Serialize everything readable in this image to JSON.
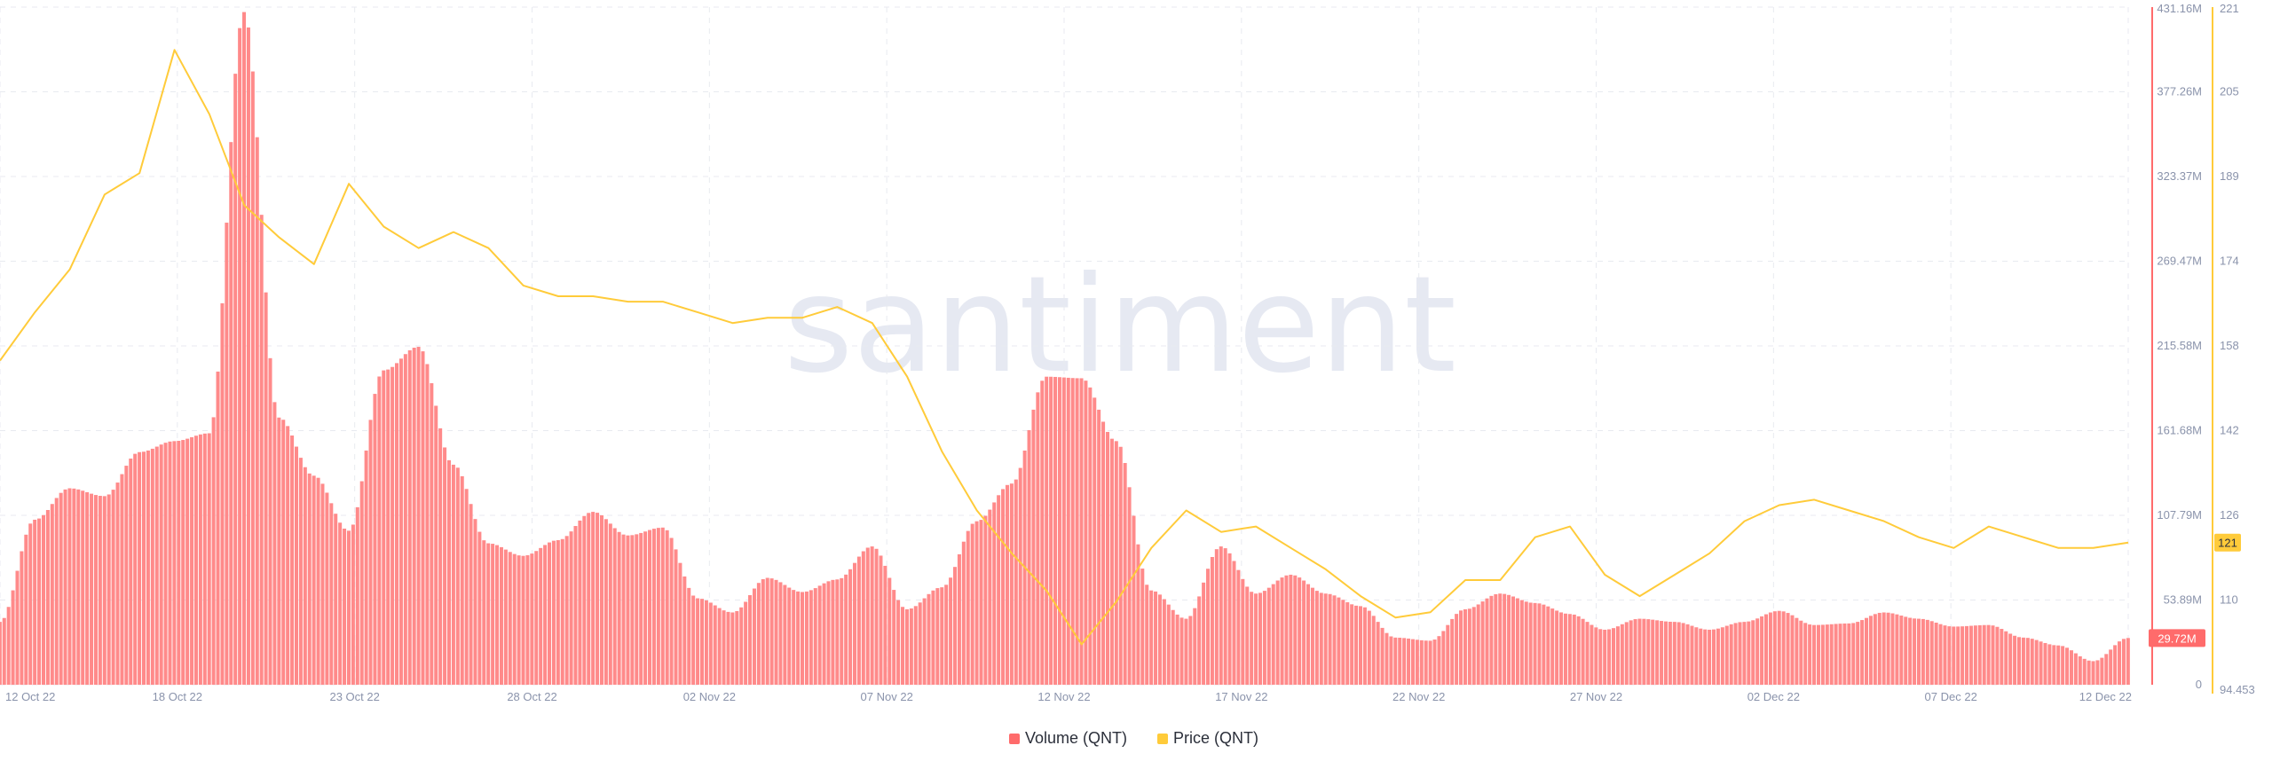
{
  "watermark": "santiment",
  "colors": {
    "volume": "#ff6b6b",
    "volume_fill": "#ff8a8a",
    "price": "#ffcb3a",
    "volume_axis": "#ff6b6b",
    "price_axis": "#ffcb3a",
    "grid": "#e8eaf0",
    "tick_text": "#8a93ab"
  },
  "chart_data": {
    "type": "bar",
    "grid": true,
    "legend_position": "bottom-center",
    "x_ticks": [
      "12 Oct 22",
      "18 Oct 22",
      "23 Oct 22",
      "28 Oct 22",
      "02 Nov 22",
      "07 Nov 22",
      "12 Nov 22",
      "17 Nov 22",
      "22 Nov 22",
      "27 Nov 22",
      "02 Dec 22",
      "07 Dec 22",
      "12 Dec 22"
    ],
    "x_range": [
      "2022-10-12",
      "2022-12-12"
    ],
    "volume_axis": {
      "side": "right",
      "ticks": [
        "431.16M",
        "377.26M",
        "323.37M",
        "269.47M",
        "215.58M",
        "161.68M",
        "107.79M",
        "53.89M",
        "0"
      ],
      "range": [
        0,
        431.16
      ],
      "unit": "M"
    },
    "price_axis": {
      "side": "right",
      "ticks": [
        "221",
        "205",
        "189",
        "174",
        "158",
        "142",
        "126",
        "110",
        "94.453"
      ],
      "range": [
        94.453,
        221
      ]
    },
    "current_volume_label": "29.72M",
    "current_price_label": "121",
    "series": [
      {
        "name": "Volume (QNT)",
        "kind": "bar",
        "unit": "M",
        "dates": [
          "2022-10-12",
          "2022-10-13",
          "2022-10-14",
          "2022-10-15",
          "2022-10-16",
          "2022-10-17",
          "2022-10-18",
          "2022-10-19",
          "2022-10-20",
          "2022-10-21",
          "2022-10-22",
          "2022-10-23",
          "2022-10-24",
          "2022-10-25",
          "2022-10-26",
          "2022-10-27",
          "2022-10-28",
          "2022-10-29",
          "2022-10-30",
          "2022-10-31",
          "2022-11-01",
          "2022-11-02",
          "2022-11-03",
          "2022-11-04",
          "2022-11-05",
          "2022-11-06",
          "2022-11-07",
          "2022-11-08",
          "2022-11-09",
          "2022-11-10",
          "2022-11-11",
          "2022-11-12",
          "2022-11-13",
          "2022-11-14",
          "2022-11-15",
          "2022-11-16",
          "2022-11-17",
          "2022-11-18",
          "2022-11-19",
          "2022-11-20",
          "2022-11-21",
          "2022-11-22",
          "2022-11-23",
          "2022-11-24",
          "2022-11-25",
          "2022-11-26",
          "2022-11-27",
          "2022-11-28",
          "2022-11-29",
          "2022-11-30",
          "2022-12-01",
          "2022-12-02",
          "2022-12-03",
          "2022-12-04",
          "2022-12-05",
          "2022-12-06",
          "2022-12-07",
          "2022-12-08",
          "2022-12-09",
          "2022-12-10",
          "2022-12-11",
          "2022-12-12"
        ],
        "values": [
          40,
          105,
          125,
          120,
          148,
          155,
          160,
          428,
          170,
          133,
          98,
          200,
          215,
          140,
          90,
          82,
          92,
          110,
          95,
          100,
          55,
          46,
          68,
          59,
          67,
          88,
          48,
          62,
          104,
          128,
          196,
          195,
          155,
          60,
          42,
          88,
          58,
          70,
          58,
          50,
          30,
          28,
          48,
          58,
          52,
          45,
          35,
          42,
          40,
          35,
          40,
          47,
          38,
          39,
          46,
          42,
          37,
          38,
          30,
          25,
          15,
          29.72
        ]
      },
      {
        "name": "Price (QNT)",
        "kind": "line",
        "dates": [
          "2022-10-12",
          "2022-10-13",
          "2022-10-14",
          "2022-10-15",
          "2022-10-16",
          "2022-10-17",
          "2022-10-18",
          "2022-10-19",
          "2022-10-20",
          "2022-10-21",
          "2022-10-22",
          "2022-10-23",
          "2022-10-24",
          "2022-10-25",
          "2022-10-26",
          "2022-10-27",
          "2022-10-28",
          "2022-10-29",
          "2022-10-30",
          "2022-10-31",
          "2022-11-01",
          "2022-11-02",
          "2022-11-03",
          "2022-11-04",
          "2022-11-05",
          "2022-11-06",
          "2022-11-07",
          "2022-11-08",
          "2022-11-09",
          "2022-11-10",
          "2022-11-11",
          "2022-11-12",
          "2022-11-13",
          "2022-11-14",
          "2022-11-15",
          "2022-11-16",
          "2022-11-17",
          "2022-11-18",
          "2022-11-19",
          "2022-11-20",
          "2022-11-21",
          "2022-11-22",
          "2022-11-23",
          "2022-11-24",
          "2022-11-25",
          "2022-11-26",
          "2022-11-27",
          "2022-11-28",
          "2022-11-29",
          "2022-11-30",
          "2022-12-01",
          "2022-12-02",
          "2022-12-03",
          "2022-12-04",
          "2022-12-05",
          "2022-12-06",
          "2022-12-07",
          "2022-12-08",
          "2022-12-09",
          "2022-12-10",
          "2022-12-11",
          "2022-12-12"
        ],
        "values": [
          155,
          164,
          172,
          186,
          190,
          213,
          201,
          184,
          178,
          173,
          188,
          180,
          176,
          179,
          176,
          169,
          167,
          167,
          166,
          166,
          164,
          162,
          163,
          163,
          165,
          162,
          152,
          138,
          127,
          119,
          112,
          102,
          110,
          120,
          127,
          123,
          124,
          120,
          116,
          111,
          107,
          108,
          114,
          114,
          122,
          124,
          115,
          111,
          115,
          119,
          125,
          128,
          129,
          127,
          125,
          122,
          120,
          124,
          122,
          120,
          120,
          121
        ]
      }
    ]
  }
}
